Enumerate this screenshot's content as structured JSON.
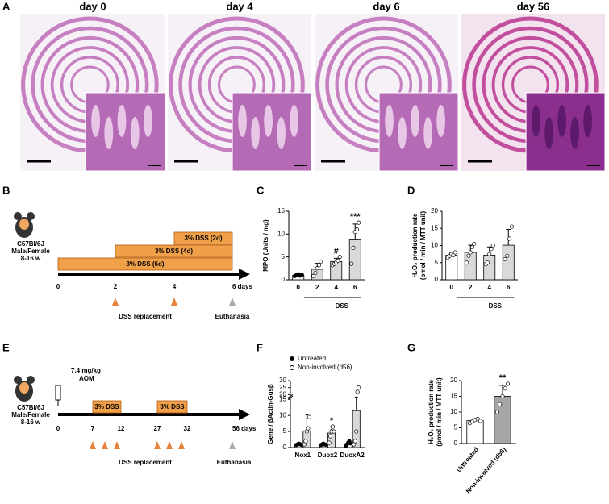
{
  "panels": {
    "a": "A",
    "b": "B",
    "c": "C",
    "d": "D",
    "e": "E",
    "f": "F",
    "g": "G"
  },
  "histology": [
    "day 0",
    "day 4",
    "day 6",
    "day 56"
  ],
  "timeline_b": {
    "strain": "C57Bl/6J",
    "sex": "Male/Female",
    "age": "8-16 w",
    "bars": [
      "3% DSS (2d)",
      "3% DSS (4d)",
      "3% DSS (6d)"
    ],
    "ticks": [
      "0",
      "2",
      "4",
      "6 days"
    ],
    "replacement": "DSS replacement",
    "euthanasia": "Euthanasia"
  },
  "timeline_e": {
    "strain": "C57Bl/6J",
    "sex": "Male/Female",
    "age": "8-16 w",
    "dose": "7.4 mg/kg",
    "drug": "AOM",
    "bars": [
      "3% DSS",
      "3% DSS"
    ],
    "ticks": [
      "0",
      "7",
      "12",
      "27",
      "32",
      "56 days"
    ],
    "replacement": "DSS replacement",
    "euthanasia": "Euthanasia"
  },
  "chart_data": [
    {
      "type": "bar",
      "ylabel": [
        "MPO (Units / mg)"
      ],
      "categories": [
        "0",
        "2",
        "4",
        "6"
      ],
      "group_label": "DSS",
      "values": [
        1.0,
        2.3,
        4.0,
        8.9
      ],
      "errors": [
        0.3,
        1.3,
        0.7,
        3.3
      ],
      "points": [
        [
          0.8,
          1.0,
          1.2,
          0.9,
          1.1
        ],
        [
          0.8,
          1.5,
          2.5,
          3.2,
          4.0
        ],
        [
          3.2,
          3.5,
          3.8,
          4.2,
          5.0
        ],
        [
          3.5,
          7.0,
          10.5,
          11.0,
          12.5
        ]
      ],
      "bar_colors": [
        "#ffffff",
        "#d9d9d9",
        "#d9d9d9",
        "#d9d9d9"
      ],
      "point_fills": [
        "#000000",
        "#ffffff",
        "#ffffff",
        "#ffffff"
      ],
      "annotations": [
        null,
        null,
        "#",
        "***"
      ],
      "ylim": [
        0,
        15
      ],
      "yticks": [
        0,
        5,
        10,
        15
      ]
    },
    {
      "type": "bar",
      "ylabel": [
        "H₂O₂ production rate",
        "(pmol / min / MTT unit)"
      ],
      "categories": [
        "0",
        "2",
        "4",
        "6"
      ],
      "group_label": "DSS",
      "values": [
        7.2,
        8.0,
        7.2,
        10.1
      ],
      "errors": [
        0.6,
        2.1,
        2.4,
        4.6
      ],
      "points": [
        [
          6.5,
          7.0,
          7.5,
          7.2,
          8.0
        ],
        [
          5.0,
          7.0,
          8.0,
          9.5,
          10.5
        ],
        [
          4.5,
          5.0,
          7.5,
          9.0,
          10.0
        ],
        [
          6.0,
          7.0,
          12.0,
          15.5
        ]
      ],
      "bar_colors": [
        "#ffffff",
        "#d9d9d9",
        "#d9d9d9",
        "#d9d9d9"
      ],
      "point_fills": [
        "#ffffff",
        "#ffffff",
        "#ffffff",
        "#ffffff"
      ],
      "annotations": [
        null,
        null,
        null,
        null
      ],
      "ylim": [
        0,
        20
      ],
      "yticks": [
        0,
        5,
        10,
        15,
        20
      ]
    },
    {
      "type": "grouped-bar",
      "ylabel": [
        "Gene / βActin-Gusβ"
      ],
      "categories": [
        "Nox1",
        "Duox2",
        "DuoxA2"
      ],
      "series": [
        {
          "name": "Untreated",
          "bar_color": "#ffffff",
          "point_fill": "#000000",
          "values": [
            1.0,
            1.0,
            1.2
          ],
          "errors": [
            0.2,
            0.2,
            0.6
          ],
          "points": [
            [
              0.8,
              1.0,
              1.2,
              1.1,
              0.9
            ],
            [
              0.8,
              1.0,
              1.2,
              1.0,
              0.9
            ],
            [
              0.5,
              1.0,
              1.5,
              2.0,
              1.3
            ]
          ],
          "annotations": [
            null,
            null,
            null
          ]
        },
        {
          "name": "Non-involved (d56)",
          "bar_color": "#d9d9d9",
          "point_fill": "#ffffff",
          "values": [
            5.2,
            4.5,
            11.5
          ],
          "errors": [
            5.0,
            2.0,
            8.0
          ],
          "points": [
            [
              1.0,
              2.0,
              5.0,
              6.0,
              9.5
            ],
            [
              1.5,
              3.5,
              5.0,
              6.5,
              5.0
            ],
            [
              1.0,
              2.0,
              5.0,
              22.0,
              25.0
            ]
          ],
          "annotations": [
            null,
            "*",
            null
          ]
        }
      ],
      "axis_break": [
        15,
        20
      ],
      "ylim": [
        0,
        30
      ],
      "yticks": [
        0,
        5,
        10,
        15,
        20,
        25,
        30
      ]
    },
    {
      "type": "bar",
      "ylabel": [
        "H₂O₂ production rate",
        "(pmol / min / MTT unit)"
      ],
      "categories": [
        "Untreated",
        "Non-involved (d56)"
      ],
      "values": [
        7.3,
        15.0
      ],
      "errors": [
        0.5,
        3.5
      ],
      "points": [
        [
          6.5,
          7.0,
          7.5,
          7.8,
          7.2
        ],
        [
          10.0,
          12.5,
          15.0,
          17.5,
          19.0
        ]
      ],
      "bar_colors": [
        "#ffffff",
        "#a6a6a6"
      ],
      "point_fills": [
        "#ffffff",
        "#ffffff"
      ],
      "annotations": [
        null,
        "**"
      ],
      "ylim": [
        0,
        20
      ],
      "yticks": [
        0,
        5,
        10,
        15,
        20
      ]
    }
  ]
}
